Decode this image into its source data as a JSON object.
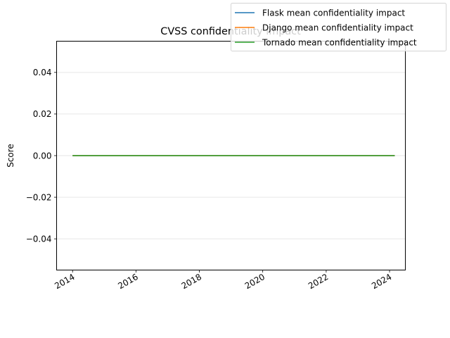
{
  "chart_data": {
    "type": "line",
    "title": "CVSS confidentiality impact",
    "xlabel": "",
    "ylabel": "Score",
    "xlim": [
      "2013-07-01",
      "2024-07-01"
    ],
    "ylim": [
      -0.055,
      0.055
    ],
    "x_ticks": [
      "2014-01-01",
      "2016-01-01",
      "2018-01-01",
      "2020-01-01",
      "2022-01-01",
      "2024-01-01"
    ],
    "x_tick_labels": [
      "2014",
      "2016",
      "2018",
      "2020",
      "2022",
      "2024"
    ],
    "y_ticks": [
      0.04,
      0.02,
      0.0,
      -0.02,
      -0.04
    ],
    "y_tick_labels": [
      "0.04",
      "0.02",
      "0.00",
      "−0.02",
      "−0.04"
    ],
    "grid": "horizontal",
    "legend_position": "top-right",
    "x": [
      "2014-01-01",
      "2024-03-01"
    ],
    "series": [
      {
        "name": "Flask mean confidentiality impact",
        "color": "#1f77b4",
        "values": [
          0,
          0
        ]
      },
      {
        "name": "Django mean confidentiality impact",
        "color": "#ff7f0e",
        "values": [
          0,
          0
        ]
      },
      {
        "name": "Tornado mean confidentiality impact",
        "color": "#2ca02c",
        "values": [
          0,
          0
        ]
      }
    ]
  }
}
